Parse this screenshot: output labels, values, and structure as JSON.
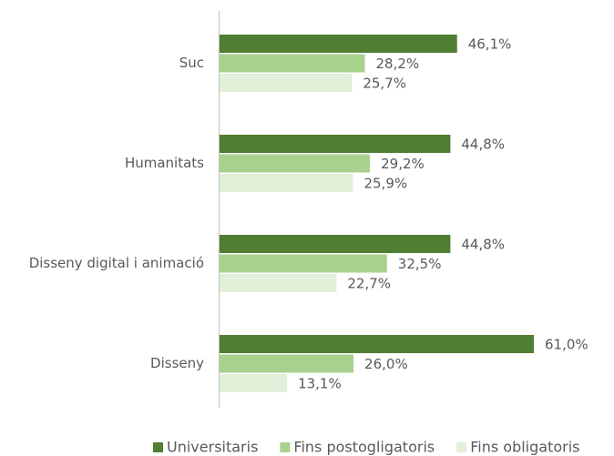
{
  "chart_data": {
    "type": "hbar",
    "categories": [
      "Suc",
      "Humanitats",
      "Disseny digital i animació",
      "Disseny"
    ],
    "series": [
      {
        "name": "Universitaris",
        "color": "#507e32",
        "values": [
          46.1,
          44.8,
          44.8,
          61.0
        ],
        "value_labels": [
          "46,1%",
          "44,8%",
          "44,8%",
          "61,0%"
        ]
      },
      {
        "name": "Fins postogligatoris",
        "color": "#a9d18e",
        "values": [
          28.2,
          29.2,
          32.5,
          26.0
        ],
        "value_labels": [
          "28,2%",
          "29,2%",
          "32,5%",
          "26,0%"
        ]
      },
      {
        "name": "Fins obligatoris",
        "color": "#e2efd9",
        "values": [
          25.7,
          25.9,
          22.7,
          13.1
        ],
        "value_labels": [
          "25,7%",
          "25,9%",
          "22,7%",
          "13,1%"
        ]
      }
    ],
    "legend": "bottom"
  }
}
